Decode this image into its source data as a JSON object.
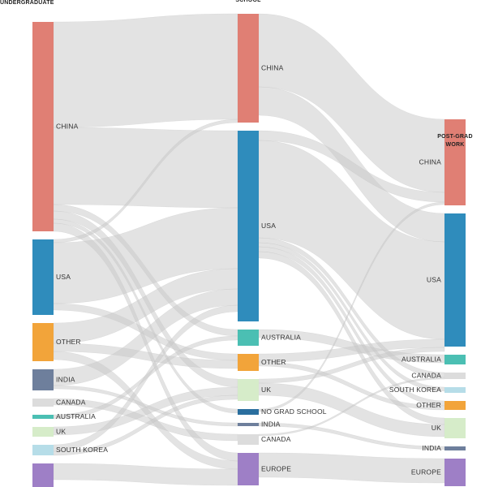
{
  "columns": [
    {
      "title_lines": [
        "UNDERGRADUATE"
      ],
      "nodes": [
        {
          "label": "CHINA",
          "value": 258,
          "color": "#e07f74"
        },
        {
          "label": "USA",
          "value": 93,
          "color": "#2f8cbc"
        },
        {
          "label": "OTHER",
          "value": 47,
          "color": "#f2a43a"
        },
        {
          "label": "INDIA",
          "value": 26,
          "color": "#6e7f9c"
        },
        {
          "label": "CANADA",
          "value": 10,
          "color": "#dcdcdc"
        },
        {
          "label": "AUSTRALIA",
          "value": 5,
          "color": "#4bbfb3"
        },
        {
          "label": "UK",
          "value": 12,
          "color": "#d6ecc9"
        },
        {
          "label": "SOUTH KOREA",
          "value": 13,
          "color": "#b6dde8"
        },
        {
          "value": 30,
          "color": "#9e7fc6"
        }
      ]
    },
    {
      "title_lines": [
        "SCHOOL"
      ],
      "nodes": [
        {
          "label": "CHINA",
          "value": 134,
          "color": "#e07f74"
        },
        {
          "label": "USA",
          "value": 235,
          "color": "#2f8cbc"
        },
        {
          "label": "AUSTRALIA",
          "value": 20,
          "color": "#4bbfb3"
        },
        {
          "label": "OTHER",
          "value": 21,
          "color": "#f2a43a"
        },
        {
          "label": "UK",
          "value": 27,
          "color": "#d6ecc9"
        },
        {
          "label": "NO GRAD SCHOOL",
          "value": 7,
          "color": "#2a6e9e"
        },
        {
          "label": "INDIA",
          "value": 4,
          "color": "#6e7f9c"
        },
        {
          "label": "CANADA",
          "value": 13,
          "color": "#dcdcdc"
        },
        {
          "label": "EUROPE",
          "value": 40,
          "color": "#9e7fc6"
        }
      ]
    },
    {
      "title_lines": [
        "POST-GRAD",
        "WORK"
      ],
      "nodes": [
        {
          "label": "CHINA",
          "value": 106,
          "color": "#e07f74"
        },
        {
          "label": "USA",
          "value": 164,
          "color": "#2f8cbc"
        },
        {
          "label": "AUSTRALIA",
          "value": 12,
          "color": "#4bbfb3"
        },
        {
          "label": "CANADA",
          "value": 8,
          "color": "#dcdcdc"
        },
        {
          "label": "SOUTH KOREA",
          "value": 7,
          "color": "#b6dde8"
        },
        {
          "label": "OTHER",
          "value": 11,
          "color": "#f2a43a"
        },
        {
          "label": "UK",
          "value": 25,
          "color": "#d6ecc9"
        },
        {
          "label": "INDIA",
          "value": 5,
          "color": "#6e7f9c"
        },
        {
          "label": "EUROPE",
          "value": 34,
          "color": "#9e7fc6"
        }
      ]
    }
  ],
  "links": [
    {
      "from": [
        0,
        0
      ],
      "to": [
        1,
        0
      ],
      "value": 130
    },
    {
      "from": [
        0,
        0
      ],
      "to": [
        1,
        1
      ],
      "value": 95
    },
    {
      "from": [
        0,
        0
      ],
      "to": [
        1,
        2
      ],
      "value": 8
    },
    {
      "from": [
        0,
        0
      ],
      "to": [
        1,
        4
      ],
      "value": 10
    },
    {
      "from": [
        0,
        0
      ],
      "to": [
        1,
        5
      ],
      "value": 5
    },
    {
      "from": [
        0,
        0
      ],
      "to": [
        1,
        8
      ],
      "value": 10
    },
    {
      "from": [
        0,
        1
      ],
      "to": [
        1,
        0
      ],
      "value": 4
    },
    {
      "from": [
        0,
        1
      ],
      "to": [
        1,
        1
      ],
      "value": 75
    },
    {
      "from": [
        0,
        1
      ],
      "to": [
        1,
        3
      ],
      "value": 8
    },
    {
      "from": [
        0,
        2
      ],
      "to": [
        1,
        1
      ],
      "value": 25
    },
    {
      "from": [
        0,
        2
      ],
      "to": [
        1,
        3
      ],
      "value": 10
    },
    {
      "from": [
        0,
        2
      ],
      "to": [
        1,
        8
      ],
      "value": 10
    },
    {
      "from": [
        0,
        3
      ],
      "to": [
        1,
        1
      ],
      "value": 20
    },
    {
      "from": [
        0,
        3
      ],
      "to": [
        1,
        6
      ],
      "value": 4
    },
    {
      "from": [
        0,
        4
      ],
      "to": [
        1,
        7
      ],
      "value": 8
    },
    {
      "from": [
        0,
        5
      ],
      "to": [
        1,
        2
      ],
      "value": 5
    },
    {
      "from": [
        0,
        6
      ],
      "to": [
        1,
        4
      ],
      "value": 10
    },
    {
      "from": [
        0,
        7
      ],
      "to": [
        1,
        1
      ],
      "value": 8
    },
    {
      "from": [
        0,
        7
      ],
      "to": [
        1,
        4
      ],
      "value": 5
    },
    {
      "from": [
        0,
        8
      ],
      "to": [
        1,
        8
      ],
      "value": 20
    },
    {
      "from": [
        1,
        0
      ],
      "to": [
        2,
        0
      ],
      "value": 90
    },
    {
      "from": [
        1,
        0
      ],
      "to": [
        2,
        1
      ],
      "value": 35
    },
    {
      "from": [
        1,
        1
      ],
      "to": [
        2,
        0
      ],
      "value": 12
    },
    {
      "from": [
        1,
        1
      ],
      "to": [
        2,
        1
      ],
      "value": 120
    },
    {
      "from": [
        1,
        1
      ],
      "to": [
        2,
        3
      ],
      "value": 6
    },
    {
      "from": [
        1,
        1
      ],
      "to": [
        2,
        4
      ],
      "value": 5
    },
    {
      "from": [
        1,
        1
      ],
      "to": [
        2,
        5
      ],
      "value": 6
    },
    {
      "from": [
        1,
        1
      ],
      "to": [
        2,
        6
      ],
      "value": 8
    },
    {
      "from": [
        1,
        2
      ],
      "to": [
        2,
        2
      ],
      "value": 10
    },
    {
      "from": [
        1,
        3
      ],
      "to": [
        2,
        1
      ],
      "value": 10
    },
    {
      "from": [
        1,
        3
      ],
      "to": [
        2,
        5
      ],
      "value": 5
    },
    {
      "from": [
        1,
        4
      ],
      "to": [
        2,
        1
      ],
      "value": 5
    },
    {
      "from": [
        1,
        4
      ],
      "to": [
        2,
        6
      ],
      "value": 15
    },
    {
      "from": [
        1,
        5
      ],
      "to": [
        2,
        0
      ],
      "value": 3
    },
    {
      "from": [
        1,
        6
      ],
      "to": [
        2,
        7
      ],
      "value": 4
    },
    {
      "from": [
        1,
        7
      ],
      "to": [
        2,
        3
      ],
      "value": 2
    },
    {
      "from": [
        1,
        8
      ],
      "to": [
        2,
        8
      ],
      "value": 30
    }
  ]
}
